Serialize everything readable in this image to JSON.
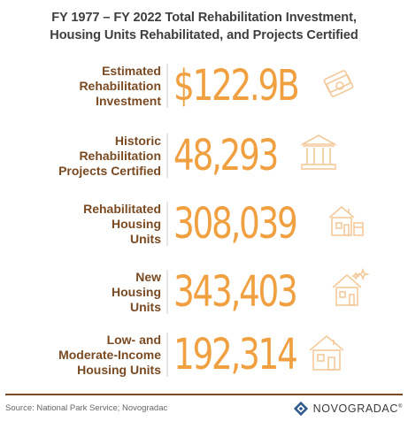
{
  "title": {
    "line1": "FY 1977 – FY 2022 Total Rehabilitation Investment,",
    "line2": "Housing Units Rehabilitated, and Projects Certified"
  },
  "stats": [
    {
      "label_lines": [
        "Estimated",
        "Rehabilitation",
        "Investment"
      ],
      "value": "$122.9B",
      "icon": "money-icon"
    },
    {
      "label_lines": [
        "Historic",
        "Rehabilitation",
        "Projects Certified"
      ],
      "value": "48,293",
      "icon": "building-columns-icon"
    },
    {
      "label_lines": [
        "Rehabilitated",
        "Housing",
        "Units"
      ],
      "value": "308,039",
      "icon": "renovated-house-icon"
    },
    {
      "label_lines": [
        "New",
        "Housing",
        "Units"
      ],
      "value": "343,403",
      "icon": "new-house-icon"
    },
    {
      "label_lines": [
        "Low- and",
        "Moderate-Income",
        "Housing Units"
      ],
      "value": "192,314",
      "icon": "house-icon"
    }
  ],
  "footer": {
    "source": "Source: National Park Service; Novogradac",
    "logo_text": "NOVOGRADAC",
    "logo_mark": "®"
  },
  "colors": {
    "title": "#3f3f3f",
    "label": "#7a4a22",
    "value": "#f0a040",
    "icon": "#f3c99a",
    "rule": "#7a4a22"
  }
}
